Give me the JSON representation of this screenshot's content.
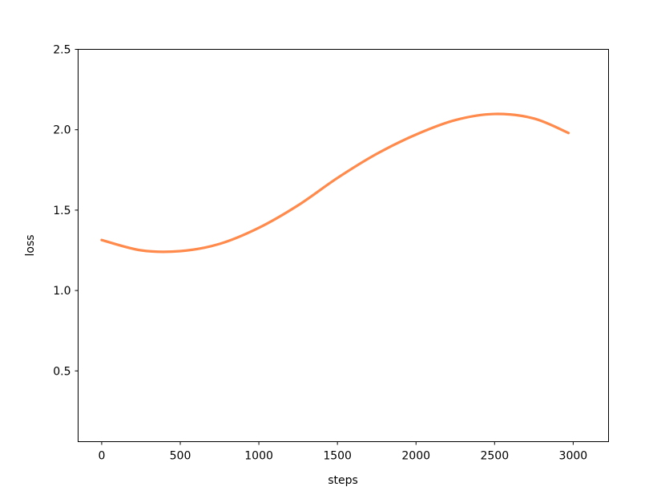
{
  "chart_data": {
    "type": "line",
    "title": "",
    "xlabel": "steps",
    "ylabel": "loss",
    "xlim": [
      -150,
      3225
    ],
    "ylim": [
      0.06,
      2.5
    ],
    "xticks": [
      0,
      500,
      1000,
      1500,
      2000,
      2500,
      3000
    ],
    "xtick_labels": [
      "0",
      "500",
      "1000",
      "1500",
      "2000",
      "2500",
      "3000"
    ],
    "yticks": [
      0.5,
      1.0,
      1.5,
      2.0,
      2.5
    ],
    "ytick_labels": [
      "0.5",
      "1.0",
      "1.5",
      "2.0",
      "2.5"
    ],
    "grid": false,
    "series": [
      {
        "color": "#ff8a4c",
        "x": [
          0,
          250,
          500,
          750,
          1000,
          1250,
          1500,
          1750,
          2000,
          2250,
          2500,
          2750,
          2970
        ],
        "y": [
          1.314,
          1.25,
          1.245,
          1.29,
          1.39,
          1.53,
          1.7,
          1.85,
          1.97,
          2.06,
          2.098,
          2.07,
          1.98
        ]
      }
    ]
  }
}
